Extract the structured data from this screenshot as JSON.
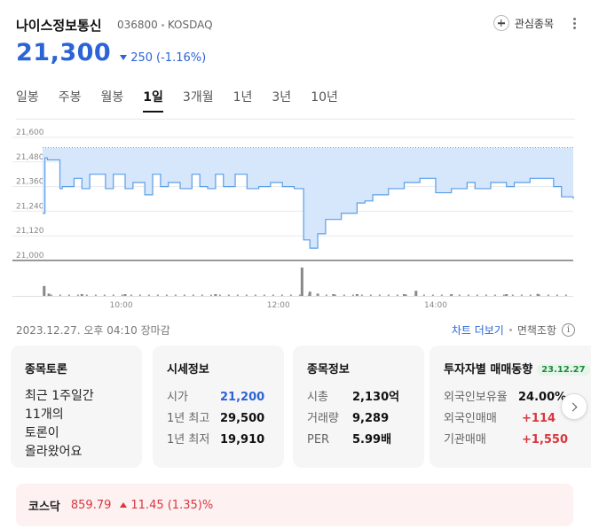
{
  "header": {
    "name": "나이스정보통신",
    "code": "036800",
    "market": "KOSDAQ",
    "watch_label": "관심종목"
  },
  "price": {
    "current": "21,300",
    "change": "250",
    "change_pct": "(-1.16%)",
    "direction": "down",
    "color": "#2a64d6"
  },
  "tabs": [
    "일봉",
    "주봉",
    "월봉",
    "1일",
    "3개월",
    "1년",
    "3년",
    "10년"
  ],
  "active_tab": "1일",
  "chart_data": {
    "type": "area",
    "y_ticks": [
      "21,600",
      "21,480",
      "21,360",
      "21,240",
      "21,120",
      "21,000"
    ],
    "ylim": [
      21000,
      21600
    ],
    "x_ticks": [
      "10:00",
      "12:00",
      "14:00"
    ],
    "reference_line": 21550,
    "series": [
      {
        "x": [
          9.0,
          9.03,
          9.06,
          9.22,
          9.25,
          9.4,
          9.5,
          9.6,
          9.7,
          9.8,
          9.9,
          10.05,
          10.15,
          10.3,
          10.4,
          10.5,
          10.6,
          10.75,
          10.9,
          11.0,
          11.1,
          11.2,
          11.3,
          11.45,
          11.6,
          11.75,
          11.9,
          12.05,
          12.2,
          12.3,
          12.32,
          12.4,
          12.5,
          12.6,
          12.7,
          12.8,
          13.0,
          13.1,
          13.2,
          13.4,
          13.6,
          13.8,
          14.0,
          14.2,
          14.4,
          14.5,
          14.7,
          14.9,
          15.0,
          15.2,
          15.3,
          15.5,
          15.6,
          15.75
        ],
        "values": [
          21230,
          21500,
          21490,
          21350,
          21360,
          21400,
          21350,
          21420,
          21420,
          21350,
          21420,
          21350,
          21380,
          21320,
          21420,
          21360,
          21380,
          21350,
          21420,
          21360,
          21350,
          21420,
          21360,
          21420,
          21350,
          21360,
          21380,
          21360,
          21350,
          21350,
          21100,
          21060,
          21130,
          21200,
          21200,
          21230,
          21280,
          21290,
          21320,
          21350,
          21380,
          21400,
          21330,
          21350,
          21380,
          21350,
          21380,
          21360,
          21380,
          21400,
          21400,
          21360,
          21310,
          21300
        ]
      }
    ],
    "volume": [
      {
        "x": 9.02,
        "v": 0.35
      },
      {
        "x": 9.08,
        "v": 0.08
      },
      {
        "x": 9.5,
        "v": 0.05
      },
      {
        "x": 10.05,
        "v": 0.04
      },
      {
        "x": 11.2,
        "v": 0.04
      },
      {
        "x": 12.3,
        "v": 1.0
      },
      {
        "x": 12.4,
        "v": 0.15
      },
      {
        "x": 12.5,
        "v": 0.08
      },
      {
        "x": 12.7,
        "v": 0.06
      },
      {
        "x": 13.0,
        "v": 0.05
      },
      {
        "x": 13.6,
        "v": 0.05
      },
      {
        "x": 13.75,
        "v": 0.18
      },
      {
        "x": 14.2,
        "v": 0.06
      },
      {
        "x": 14.9,
        "v": 0.05
      },
      {
        "x": 15.3,
        "v": 0.07
      }
    ]
  },
  "footer": {
    "timestamp": "2023.12.27. 오후 04:10 장마감",
    "more_chart": "차트 더보기",
    "disclaimer": "면책조항"
  },
  "cards": {
    "discussion": {
      "title": "종목토론",
      "lines": [
        "최근 1주일간",
        "11개의",
        "토론이",
        "올라왔어요"
      ]
    },
    "quote": {
      "title": "시세정보",
      "rows": [
        {
          "k": "시가",
          "v": "21,200",
          "color": "#2a64d6"
        },
        {
          "k": "1년 최고",
          "v": "29,500",
          "color": "#111111"
        },
        {
          "k": "1년 최저",
          "v": "19,910",
          "color": "#111111"
        }
      ]
    },
    "info": {
      "title": "종목정보",
      "rows": [
        {
          "k": "시총",
          "v": "2,130억"
        },
        {
          "k": "거래량",
          "v": "9,289"
        },
        {
          "k": "PER",
          "v": "5.99배"
        }
      ]
    },
    "investor": {
      "title": "투자자별 매매동향",
      "badge": "23.12.27",
      "rows": [
        {
          "k": "외국인보유율",
          "v": "24.00%",
          "color": "#111111"
        },
        {
          "k": "외국인매매",
          "v": "+114",
          "color": "#d9363e"
        },
        {
          "k": "기관매매",
          "v": "+1,550",
          "color": "#d9363e"
        }
      ]
    }
  },
  "index": {
    "name": "코스닥",
    "value": "859.79",
    "change": "11.45 (1.35)%",
    "color": "#d9363e"
  }
}
